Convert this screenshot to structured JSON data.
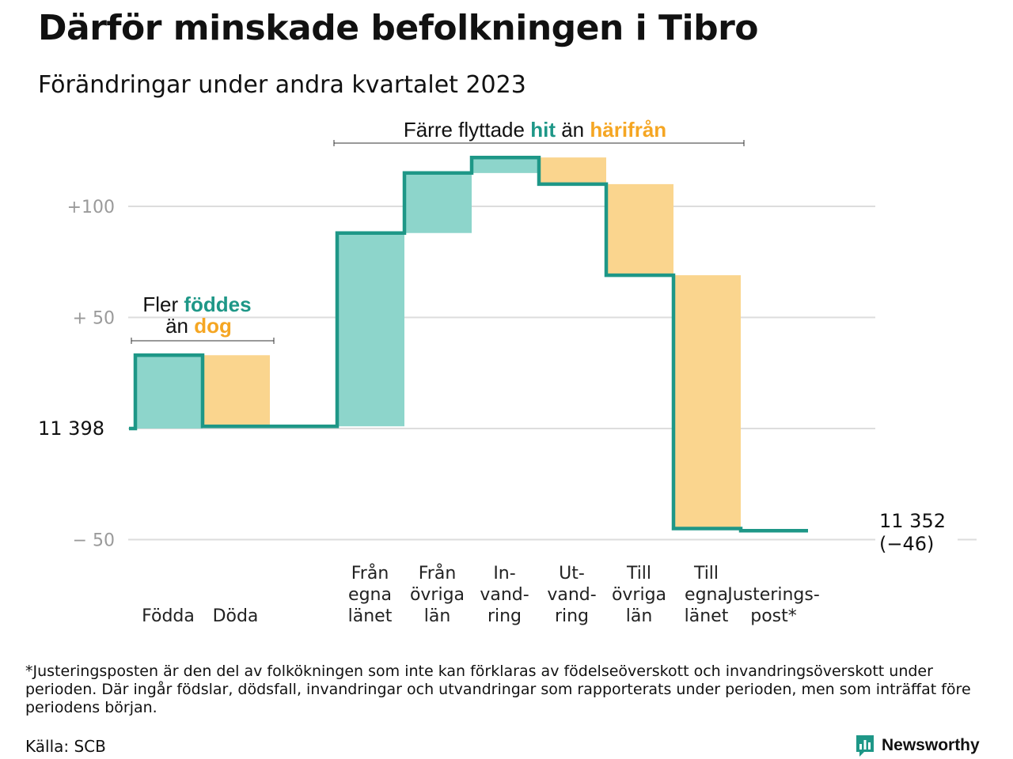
{
  "title": "Därför minskade befolkningen i Tibro",
  "subtitle": "Förändringar under andra kvartalet 2023",
  "colors": {
    "increase_fill": "#8dd5cb",
    "decrease_fill": "#fad58e",
    "line": "#1e9787",
    "teal_text": "#1e9787",
    "orange_text": "#f5a623",
    "grid": "#dddddd",
    "tick_text": "#9a9a9a"
  },
  "annotations": {
    "births": {
      "pre": "Fler ",
      "highlight1": "föddes",
      "line2_pre": "än ",
      "highlight2": "dog"
    },
    "migration": {
      "pre": "Färre flyttade ",
      "highlight1": "hit",
      "mid": " än ",
      "highlight2": "härifrån"
    }
  },
  "end_label": {
    "value": "11 352",
    "change": "(−46)"
  },
  "footnote": "*Justeringsposten är den del av folkökningen som inte kan förklaras av födelseöverskott och invandringsöverskott under perioden. Där ingår födslar, dödsfall, invandringar och utvandringar som rapporterats under perioden, men som inträffat före periodens början.",
  "source": "Källa: SCB",
  "brand": {
    "name": "Newsworthy",
    "icon": "newsworthy-logo-icon"
  },
  "chart_data": {
    "type": "waterfall",
    "title": "Därför minskade befolkningen i Tibro",
    "subtitle": "Förändringar under andra kvartalet 2023",
    "start_value": 11398,
    "start_label": "11 398",
    "end_value": 11352,
    "net_change": -46,
    "y_ticks": [
      {
        "value": 100,
        "label": "+100"
      },
      {
        "value": 50,
        "label": "+  50"
      },
      {
        "value": 0,
        "label": "11  398"
      },
      {
        "value": -50,
        "label": "−  50"
      }
    ],
    "ylim": [
      -60,
      130
    ],
    "grid": true,
    "steps": [
      {
        "label": [
          "Födda"
        ],
        "change": 33,
        "kind": "increase"
      },
      {
        "label": [
          "Döda"
        ],
        "change": -32,
        "kind": "decrease"
      },
      {
        "label": [
          ""
        ],
        "change": 0,
        "kind": "gap"
      },
      {
        "label": [
          "Från",
          "egna",
          "länet"
        ],
        "change": 87,
        "kind": "increase"
      },
      {
        "label": [
          "Från",
          "övriga",
          "län"
        ],
        "change": 27,
        "kind": "increase"
      },
      {
        "label": [
          "In-",
          "vand-",
          "ring"
        ],
        "change": 7,
        "kind": "increase"
      },
      {
        "label": [
          "Ut-",
          "vand-",
          "ring"
        ],
        "change": -12,
        "kind": "decrease"
      },
      {
        "label": [
          "Till",
          "övriga",
          "län"
        ],
        "change": -41,
        "kind": "decrease"
      },
      {
        "label": [
          "Till",
          "egna",
          "länet"
        ],
        "change": -114,
        "kind": "decrease"
      },
      {
        "label": [
          "Justerings-",
          "post*"
        ],
        "change": -1,
        "kind": "adjustment"
      }
    ]
  }
}
